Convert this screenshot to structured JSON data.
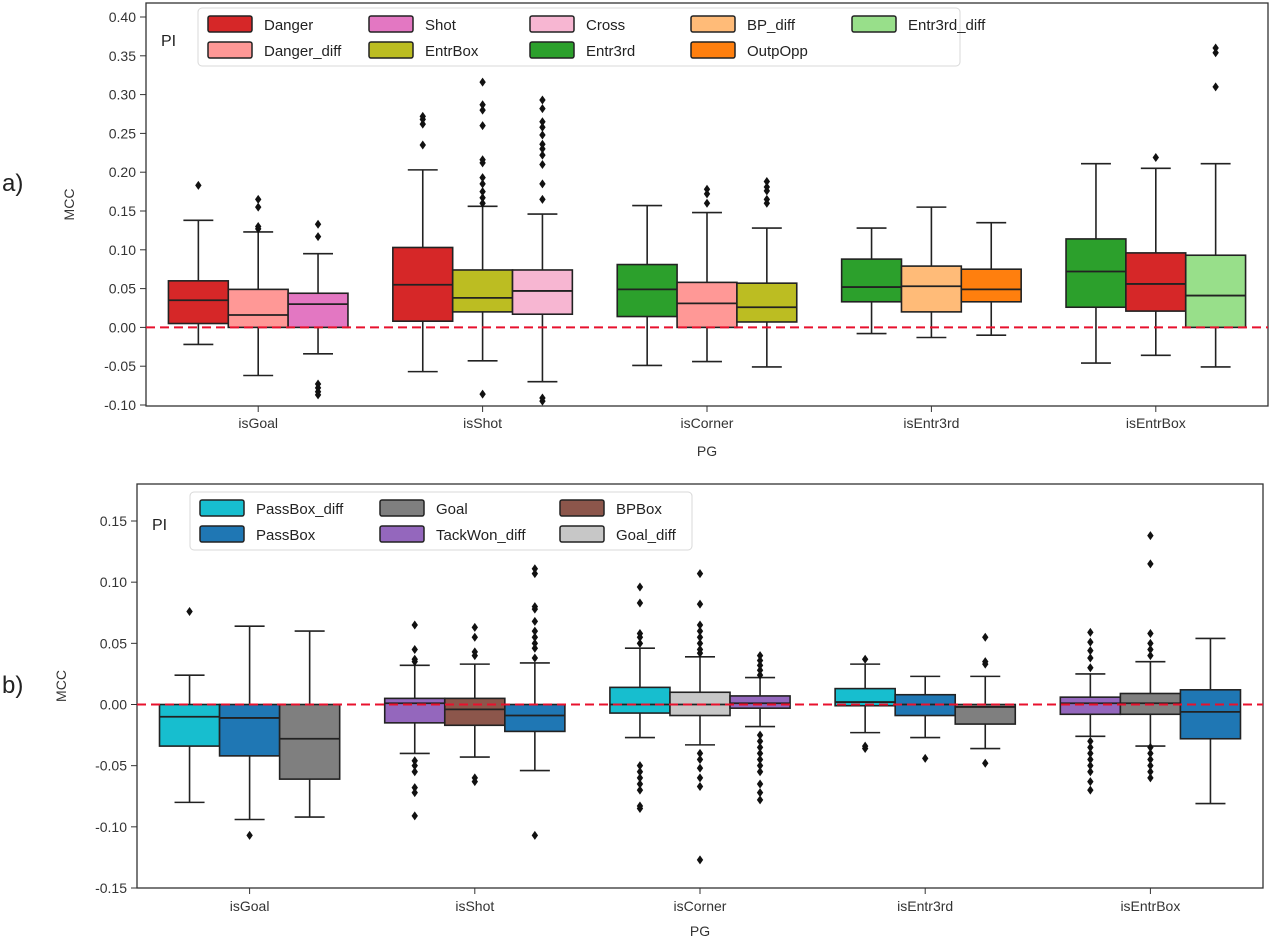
{
  "panels": [
    {
      "label": "a)"
    },
    {
      "label": "b)"
    }
  ],
  "chart_data": [
    {
      "type": "box",
      "panel": "a)",
      "xlabel": "PG",
      "ylabel": "MCC",
      "legend_title": "PI",
      "legend_position": "top-left",
      "ylim": [
        -0.1,
        0.42
      ],
      "yticks": [
        -0.1,
        -0.05,
        0.0,
        0.05,
        0.1,
        0.15,
        0.2,
        0.25,
        0.3,
        0.35,
        0.4
      ],
      "ytick_labels": [
        "-0.10",
        "-0.05",
        "0.00",
        "0.05",
        "0.10",
        "0.15",
        "0.20",
        "0.25",
        "0.30",
        "0.35",
        "0.40"
      ],
      "reference_line": {
        "y": 0.0,
        "color": "#e8112d",
        "style": "dashed"
      },
      "legend": [
        {
          "name": "Danger",
          "color": "#d62728"
        },
        {
          "name": "Danger_diff",
          "color": "#ff9896"
        },
        {
          "name": "Shot",
          "color": "#e377c2"
        },
        {
          "name": "EntrBox",
          "color": "#bcbd22"
        },
        {
          "name": "Cross",
          "color": "#f7b6d2"
        },
        {
          "name": "Entr3rd",
          "color": "#2ca02c"
        },
        {
          "name": "BP_diff",
          "color": "#ffbb78"
        },
        {
          "name": "OutpOpp",
          "color": "#ff7f0e"
        },
        {
          "name": "Entr3rd_diff",
          "color": "#98df8a"
        }
      ],
      "categories": [
        "isGoal",
        "isShot",
        "isCorner",
        "isEntr3rd",
        "isEntrBox"
      ],
      "groups": [
        {
          "category": "isGoal",
          "boxes": [
            {
              "pi": "Danger",
              "q1": 0.005,
              "median": 0.035,
              "q3": 0.06,
              "whislo": -0.022,
              "whishi": 0.138,
              "fliers": [
                0.183
              ]
            },
            {
              "pi": "Danger_diff",
              "q1": 0.0,
              "median": 0.016,
              "q3": 0.049,
              "whislo": -0.062,
              "whishi": 0.123,
              "fliers": [
                0.127,
                0.13,
                0.155,
                0.165
              ]
            },
            {
              "pi": "Shot",
              "q1": 0.0,
              "median": 0.03,
              "q3": 0.044,
              "whislo": -0.034,
              "whishi": 0.095,
              "fliers": [
                0.117,
                0.133,
                -0.073,
                -0.078,
                -0.083,
                -0.087
              ]
            }
          ]
        },
        {
          "category": "isShot",
          "boxes": [
            {
              "pi": "Danger",
              "q1": 0.008,
              "median": 0.055,
              "q3": 0.103,
              "whislo": -0.057,
              "whishi": 0.203,
              "fliers": [
                0.235,
                0.262,
                0.268,
                0.272
              ]
            },
            {
              "pi": "EntrBox",
              "q1": 0.02,
              "median": 0.038,
              "q3": 0.074,
              "whislo": -0.043,
              "whishi": 0.156,
              "fliers": [
                0.16,
                0.167,
                0.175,
                0.185,
                0.193,
                0.212,
                0.216,
                0.26,
                0.28,
                0.287,
                0.316,
                -0.086
              ]
            },
            {
              "pi": "Cross",
              "q1": 0.017,
              "median": 0.047,
              "q3": 0.074,
              "whislo": -0.07,
              "whishi": 0.146,
              "fliers": [
                0.165,
                0.185,
                0.21,
                0.222,
                0.23,
                0.236,
                0.248,
                0.258,
                0.265,
                0.282,
                0.293,
                -0.091,
                -0.095
              ]
            }
          ]
        },
        {
          "category": "isCorner",
          "boxes": [
            {
              "pi": "Entr3rd",
              "q1": 0.014,
              "median": 0.049,
              "q3": 0.081,
              "whislo": -0.049,
              "whishi": 0.157,
              "fliers": []
            },
            {
              "pi": "Danger_diff",
              "q1": 0.0,
              "median": 0.031,
              "q3": 0.058,
              "whislo": -0.044,
              "whishi": 0.148,
              "fliers": [
                0.16,
                0.172,
                0.178
              ]
            },
            {
              "pi": "EntrBox",
              "q1": 0.007,
              "median": 0.026,
              "q3": 0.057,
              "whislo": -0.051,
              "whishi": 0.128,
              "fliers": [
                0.16,
                0.165,
                0.176,
                0.181,
                0.188
              ]
            }
          ]
        },
        {
          "category": "isEntr3rd",
          "boxes": [
            {
              "pi": "Entr3rd",
              "q1": 0.033,
              "median": 0.052,
              "q3": 0.088,
              "whislo": -0.008,
              "whishi": 0.128,
              "fliers": []
            },
            {
              "pi": "BP_diff",
              "q1": 0.02,
              "median": 0.053,
              "q3": 0.079,
              "whislo": -0.013,
              "whishi": 0.155,
              "fliers": []
            },
            {
              "pi": "OutpOpp",
              "q1": 0.033,
              "median": 0.049,
              "q3": 0.075,
              "whislo": -0.01,
              "whishi": 0.135,
              "fliers": []
            }
          ]
        },
        {
          "category": "isEntrBox",
          "boxes": [
            {
              "pi": "Entr3rd",
              "q1": 0.026,
              "median": 0.072,
              "q3": 0.114,
              "whislo": -0.046,
              "whishi": 0.211,
              "fliers": []
            },
            {
              "pi": "Danger",
              "q1": 0.021,
              "median": 0.056,
              "q3": 0.096,
              "whislo": -0.036,
              "whishi": 0.205,
              "fliers": [
                0.219
              ]
            },
            {
              "pi": "Entr3rd_diff",
              "q1": 0.0,
              "median": 0.041,
              "q3": 0.093,
              "whislo": -0.051,
              "whishi": 0.211,
              "fliers": [
                0.31,
                0.354,
                0.36
              ]
            }
          ]
        }
      ]
    },
    {
      "type": "box",
      "panel": "b)",
      "xlabel": "PG",
      "ylabel": "MCC",
      "legend_title": "PI",
      "legend_position": "top-left",
      "ylim": [
        -0.15,
        0.18
      ],
      "yticks": [
        -0.15,
        -0.1,
        -0.05,
        0.0,
        0.05,
        0.1,
        0.15
      ],
      "ytick_labels": [
        "-0.15",
        "-0.10",
        "-0.05",
        "0.00",
        "0.05",
        "0.10",
        "0.15"
      ],
      "reference_line": {
        "y": 0.0,
        "color": "#e8112d",
        "style": "dashed"
      },
      "legend": [
        {
          "name": "PassBox_diff",
          "color": "#17becf"
        },
        {
          "name": "PassBox",
          "color": "#1f77b4"
        },
        {
          "name": "Goal",
          "color": "#7f7f7f"
        },
        {
          "name": "TackWon_diff",
          "color": "#9467bd"
        },
        {
          "name": "BPBox",
          "color": "#8c564b"
        },
        {
          "name": "Goal_diff",
          "color": "#c7c7c7"
        }
      ],
      "categories": [
        "isGoal",
        "isShot",
        "isCorner",
        "isEntr3rd",
        "isEntrBox"
      ],
      "groups": [
        {
          "category": "isGoal",
          "boxes": [
            {
              "pi": "PassBox_diff",
              "q1": -0.034,
              "median": -0.01,
              "q3": 0.0,
              "whislo": -0.08,
              "whishi": 0.024,
              "fliers": [
                0.076
              ]
            },
            {
              "pi": "PassBox",
              "q1": -0.042,
              "median": -0.011,
              "q3": 0.0,
              "whislo": -0.094,
              "whishi": 0.064,
              "fliers": [
                -0.107
              ]
            },
            {
              "pi": "Goal",
              "q1": -0.061,
              "median": -0.028,
              "q3": 0.0,
              "whislo": -0.092,
              "whishi": 0.06,
              "fliers": []
            }
          ]
        },
        {
          "category": "isShot",
          "boxes": [
            {
              "pi": "TackWon_diff",
              "q1": -0.015,
              "median": 0.001,
              "q3": 0.005,
              "whislo": -0.04,
              "whishi": 0.032,
              "fliers": [
                0.035,
                0.037,
                0.045,
                0.065,
                -0.046,
                -0.05,
                -0.055,
                -0.068,
                -0.072,
                -0.091
              ]
            },
            {
              "pi": "BPBox",
              "q1": -0.017,
              "median": -0.004,
              "q3": 0.005,
              "whislo": -0.043,
              "whishi": 0.033,
              "fliers": [
                0.04,
                0.043,
                0.055,
                0.063,
                -0.06,
                -0.063
              ]
            },
            {
              "pi": "PassBox",
              "q1": -0.022,
              "median": -0.009,
              "q3": 0.0,
              "whislo": -0.054,
              "whishi": 0.034,
              "fliers": [
                0.038,
                0.046,
                0.05,
                0.055,
                0.06,
                0.068,
                0.078,
                0.08,
                0.107,
                0.111,
                -0.107
              ]
            }
          ]
        },
        {
          "category": "isCorner",
          "boxes": [
            {
              "pi": "PassBox_diff",
              "q1": -0.007,
              "median": 0.0,
              "q3": 0.014,
              "whislo": -0.027,
              "whishi": 0.046,
              "fliers": [
                0.05,
                0.055,
                0.058,
                0.083,
                0.096,
                -0.05,
                -0.055,
                -0.06,
                -0.065,
                -0.07,
                -0.083,
                -0.085
              ]
            },
            {
              "pi": "Goal_diff",
              "q1": -0.009,
              "median": 0.0,
              "q3": 0.01,
              "whislo": -0.033,
              "whishi": 0.039,
              "fliers": [
                0.042,
                0.045,
                0.05,
                0.055,
                0.06,
                0.065,
                0.082,
                0.107,
                -0.04,
                -0.045,
                -0.052,
                -0.06,
                -0.067,
                -0.127
              ]
            },
            {
              "pi": "TackWon_diff",
              "q1": -0.003,
              "median": 0.001,
              "q3": 0.007,
              "whislo": -0.018,
              "whishi": 0.022,
              "fliers": [
                0.024,
                0.028,
                0.032,
                0.036,
                0.04,
                -0.025,
                -0.03,
                -0.035,
                -0.04,
                -0.045,
                -0.05,
                -0.055,
                -0.065,
                -0.072,
                -0.078
              ]
            }
          ]
        },
        {
          "category": "isEntr3rd",
          "boxes": [
            {
              "pi": "PassBox_diff",
              "q1": -0.001,
              "median": 0.002,
              "q3": 0.013,
              "whislo": -0.023,
              "whishi": 0.033,
              "fliers": [
                0.037,
                -0.034,
                -0.036
              ]
            },
            {
              "pi": "PassBox",
              "q1": -0.009,
              "median": 0.0,
              "q3": 0.008,
              "whislo": -0.027,
              "whishi": 0.023,
              "fliers": [
                -0.044
              ]
            },
            {
              "pi": "Goal",
              "q1": -0.016,
              "median": -0.002,
              "q3": 0.0,
              "whislo": -0.036,
              "whishi": 0.023,
              "fliers": [
                0.033,
                0.035,
                0.055,
                -0.048
              ]
            }
          ]
        },
        {
          "category": "isEntrBox",
          "boxes": [
            {
              "pi": "TackWon_diff",
              "q1": -0.008,
              "median": 0.001,
              "q3": 0.006,
              "whislo": -0.026,
              "whishi": 0.025,
              "fliers": [
                0.03,
                0.038,
                0.044,
                0.051,
                0.059,
                -0.03,
                -0.035,
                -0.04,
                -0.045,
                -0.05,
                -0.055,
                -0.063,
                -0.07
              ]
            },
            {
              "pi": "Goal",
              "q1": -0.008,
              "median": 0.001,
              "q3": 0.009,
              "whislo": -0.034,
              "whishi": 0.035,
              "fliers": [
                0.04,
                0.045,
                0.05,
                0.058,
                0.115,
                0.138,
                -0.035,
                -0.04,
                -0.045,
                -0.05,
                -0.055,
                -0.06
              ]
            },
            {
              "pi": "PassBox",
              "q1": -0.028,
              "median": -0.006,
              "q3": 0.012,
              "whislo": -0.081,
              "whishi": 0.054,
              "fliers": []
            }
          ]
        }
      ]
    }
  ]
}
